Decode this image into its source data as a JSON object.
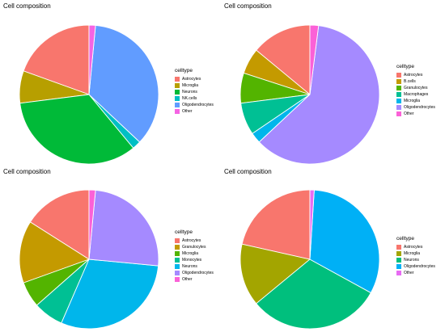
{
  "chart_data": [
    {
      "type": "pie",
      "title": "Cell composition",
      "legend_title": "celltype",
      "legend_position": "right",
      "slices": [
        {
          "label": "Astrocytes",
          "value": 0.195,
          "color": "#F8766D"
        },
        {
          "label": "Microglia",
          "value": 0.075,
          "color": "#B79F00"
        },
        {
          "label": "Neurons",
          "value": 0.34,
          "color": "#00BA38"
        },
        {
          "label": "NK.cells",
          "value": 0.02,
          "color": "#00BFC4"
        },
        {
          "label": "Oligodendrocytes",
          "value": 0.355,
          "color": "#619CFF"
        },
        {
          "label": "Other",
          "value": 0.015,
          "color": "#F564E3"
        }
      ]
    },
    {
      "type": "pie",
      "title": "Cell composition",
      "legend_title": "celltype",
      "legend_position": "right",
      "slices": [
        {
          "label": "Astrocytes",
          "value": 0.14,
          "color": "#F8766D"
        },
        {
          "label": "B.cells",
          "value": 0.06,
          "color": "#C49A00"
        },
        {
          "label": "Granulocytes",
          "value": 0.07,
          "color": "#53B400"
        },
        {
          "label": "Macrophages",
          "value": 0.075,
          "color": "#00C094"
        },
        {
          "label": "Microglia",
          "value": 0.025,
          "color": "#00B6EB"
        },
        {
          "label": "Oligodendrocytes",
          "value": 0.61,
          "color": "#A58AFF"
        },
        {
          "label": "Other",
          "value": 0.02,
          "color": "#FB61D7"
        }
      ]
    },
    {
      "type": "pie",
      "title": "Cell composition",
      "legend_title": "celltype",
      "legend_position": "right",
      "slices": [
        {
          "label": "Astrocytes",
          "value": 0.16,
          "color": "#F8766D"
        },
        {
          "label": "Granulocytes",
          "value": 0.145,
          "color": "#C49A00"
        },
        {
          "label": "Microglia",
          "value": 0.06,
          "color": "#53B400"
        },
        {
          "label": "Monocytes",
          "value": 0.07,
          "color": "#00C094"
        },
        {
          "label": "Neurons",
          "value": 0.3,
          "color": "#00B6EB"
        },
        {
          "label": "Oligodendrocytes",
          "value": 0.25,
          "color": "#A58AFF"
        },
        {
          "label": "Other",
          "value": 0.015,
          "color": "#FB61D7"
        }
      ]
    },
    {
      "type": "pie",
      "title": "Cell composition",
      "legend_title": "celltype",
      "legend_position": "right",
      "slices": [
        {
          "label": "Astrocytes",
          "value": 0.215,
          "color": "#F8766D"
        },
        {
          "label": "Microglia",
          "value": 0.145,
          "color": "#A3A500"
        },
        {
          "label": "Neurons",
          "value": 0.31,
          "color": "#00BF7D"
        },
        {
          "label": "Oligodendrocytes",
          "value": 0.32,
          "color": "#00B0F6"
        },
        {
          "label": "Other",
          "value": 0.01,
          "color": "#E76BF3"
        }
      ]
    }
  ]
}
